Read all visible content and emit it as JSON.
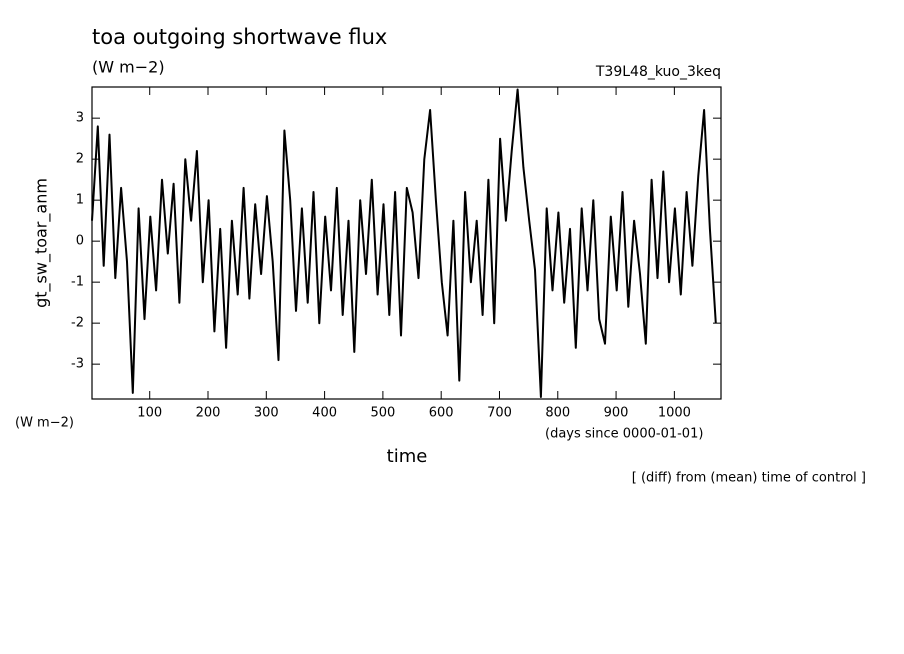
{
  "chart_data": {
    "type": "line",
    "title": "toa outgoing shortwave flux",
    "subtitle": "(W m−2)",
    "annotation_right": "T39L48_kuo_3keq",
    "y_axis_label": "gt_sw_toar_anm",
    "y_unit_label": "(W m−2)",
    "x_axis_label": "time",
    "x_unit_label": "(days since 0000-01-01)",
    "footnote": "[ (diff) from (mean) time of control ]",
    "xlim": [
      1,
      1080
    ],
    "ylim": [
      -3.85,
      3.76
    ],
    "xticks": [
      100,
      200,
      300,
      400,
      500,
      600,
      700,
      800,
      900,
      1000
    ],
    "yticks": [
      -3,
      -2,
      -1,
      0,
      1,
      2,
      3
    ],
    "x": [
      1,
      11,
      21,
      31,
      41,
      51,
      61,
      71,
      81,
      91,
      101,
      111,
      121,
      131,
      141,
      151,
      161,
      171,
      181,
      191,
      201,
      211,
      221,
      231,
      241,
      251,
      261,
      271,
      281,
      291,
      301,
      311,
      321,
      331,
      341,
      351,
      361,
      371,
      381,
      391,
      401,
      411,
      421,
      431,
      441,
      451,
      461,
      471,
      481,
      491,
      501,
      511,
      521,
      531,
      541,
      551,
      561,
      571,
      581,
      591,
      601,
      611,
      621,
      631,
      641,
      651,
      661,
      671,
      681,
      691,
      701,
      711,
      721,
      731,
      741,
      751,
      761,
      771,
      781,
      791,
      801,
      811,
      821,
      831,
      841,
      851,
      861,
      871,
      881,
      891,
      901,
      911,
      921,
      931,
      941,
      951,
      961,
      971,
      981,
      991,
      1001,
      1011,
      1021,
      1031,
      1041,
      1051,
      1061,
      1071
    ],
    "series": [
      {
        "color": "#000000",
        "values": [
          0.5,
          2.8,
          -0.6,
          2.6,
          -0.9,
          1.3,
          -0.5,
          -3.7,
          0.8,
          -1.9,
          0.6,
          -1.2,
          1.5,
          -0.3,
          1.4,
          -1.5,
          2.0,
          0.5,
          2.2,
          -1.0,
          1.0,
          -2.2,
          0.3,
          -2.6,
          0.5,
          -1.3,
          1.3,
          -1.4,
          0.9,
          -0.8,
          1.1,
          -0.5,
          -2.9,
          2.7,
          1.0,
          -1.7,
          0.8,
          -1.5,
          1.2,
          -2.0,
          0.6,
          -1.2,
          1.3,
          -1.8,
          0.5,
          -2.7,
          1.0,
          -0.8,
          1.5,
          -1.3,
          0.9,
          -1.8,
          1.2,
          -2.3,
          1.3,
          0.7,
          -0.9,
          2.0,
          3.2,
          1.0,
          -1.0,
          -2.3,
          0.5,
          -3.4,
          1.2,
          -1.0,
          0.5,
          -1.8,
          1.5,
          -2.0,
          2.5,
          0.5,
          2.2,
          3.7,
          1.8,
          0.5,
          -0.7,
          -3.8,
          0.8,
          -1.2,
          0.7,
          -1.5,
          0.3,
          -2.6,
          0.8,
          -1.2,
          1.0,
          -1.9,
          -2.5,
          0.6,
          -1.2,
          1.2,
          -1.6,
          0.5,
          -0.8,
          -2.5,
          1.5,
          -0.9,
          1.7,
          -1.0,
          0.8,
          -1.3,
          1.2,
          -0.6,
          1.6,
          3.2,
          0.3,
          -2.0
        ]
      }
    ]
  }
}
